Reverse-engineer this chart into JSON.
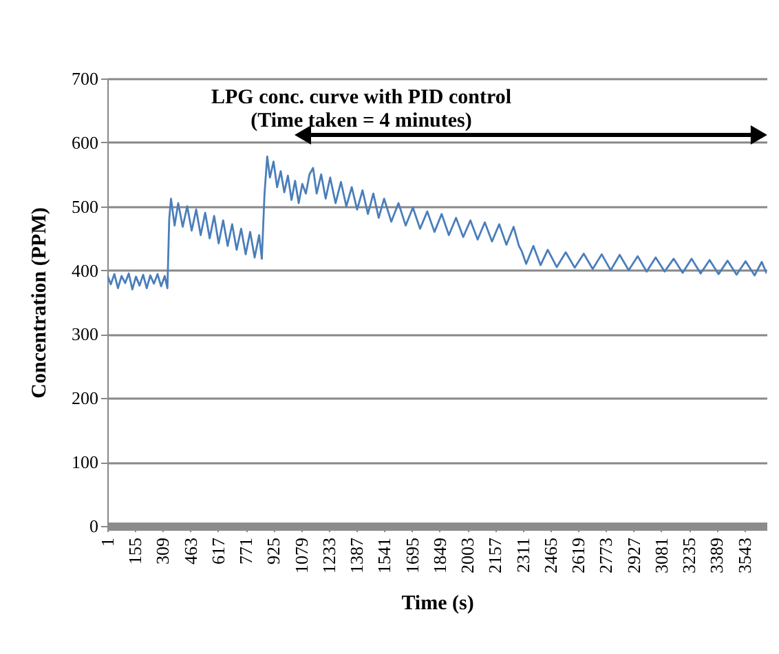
{
  "chart_data": {
    "type": "line",
    "title": "LPG conc. curve with PID control",
    "subtitle": "(Time taken = 4 minutes)",
    "xlabel": "Time (s)",
    "ylabel": "Concentration (PPM)",
    "x": [
      1,
      20,
      40,
      60,
      80,
      100,
      120,
      140,
      160,
      180,
      200,
      220,
      240,
      260,
      280,
      300,
      320,
      335,
      345,
      355,
      375,
      395,
      420,
      445,
      470,
      495,
      520,
      545,
      570,
      595,
      620,
      645,
      670,
      695,
      720,
      745,
      770,
      795,
      820,
      845,
      860,
      875,
      890,
      905,
      925,
      945,
      965,
      985,
      1005,
      1025,
      1045,
      1065,
      1085,
      1105,
      1125,
      1145,
      1165,
      1190,
      1215,
      1240,
      1270,
      1300,
      1330,
      1360,
      1390,
      1420,
      1450,
      1480,
      1510,
      1540,
      1580,
      1620,
      1660,
      1700,
      1740,
      1780,
      1820,
      1860,
      1900,
      1940,
      1980,
      2020,
      2060,
      2100,
      2140,
      2180,
      2220,
      2260,
      2290,
      2305,
      2330,
      2370,
      2410,
      2450,
      2500,
      2550,
      2600,
      2650,
      2700,
      2750,
      2800,
      2850,
      2900,
      2950,
      3000,
      3050,
      3100,
      3150,
      3200,
      3250,
      3300,
      3350,
      3400,
      3450,
      3500,
      3550,
      3600,
      3640,
      3667
    ],
    "series": [
      {
        "color": "#4a7ebb",
        "values": [
          392,
          378,
          394,
          372,
          391,
          380,
          395,
          370,
          390,
          376,
          393,
          372,
          392,
          379,
          394,
          375,
          391,
          372,
          480,
          512,
          470,
          505,
          468,
          500,
          462,
          495,
          455,
          490,
          450,
          485,
          442,
          478,
          438,
          472,
          432,
          465,
          425,
          460,
          420,
          455,
          418,
          520,
          578,
          545,
          570,
          530,
          555,
          522,
          548,
          510,
          540,
          505,
          535,
          520,
          550,
          560,
          520,
          550,
          512,
          545,
          505,
          538,
          500,
          530,
          495,
          525,
          488,
          520,
          482,
          512,
          476,
          505,
          470,
          498,
          465,
          492,
          460,
          488,
          455,
          482,
          452,
          478,
          448,
          475,
          445,
          472,
          440,
          468,
          438,
          430,
          410,
          438,
          408,
          432,
          405,
          428,
          404,
          426,
          402,
          425,
          400,
          424,
          400,
          422,
          398,
          420,
          398,
          418,
          396,
          418,
          395,
          416,
          394,
          415,
          393,
          414,
          392,
          413,
          395
        ]
      }
    ],
    "xlim": [
      1,
      3667
    ],
    "xticks": [
      1,
      155,
      309,
      463,
      617,
      771,
      925,
      1079,
      1233,
      1387,
      1541,
      1695,
      1849,
      2003,
      2157,
      2311,
      2465,
      2619,
      2773,
      2927,
      3081,
      3235,
      3389,
      3543
    ],
    "ylim": [
      0,
      700
    ],
    "yticks": [
      0,
      100,
      200,
      300,
      400,
      500,
      600,
      700
    ],
    "grid": "y",
    "legend": false,
    "marker": "none",
    "line_style": "solid"
  }
}
